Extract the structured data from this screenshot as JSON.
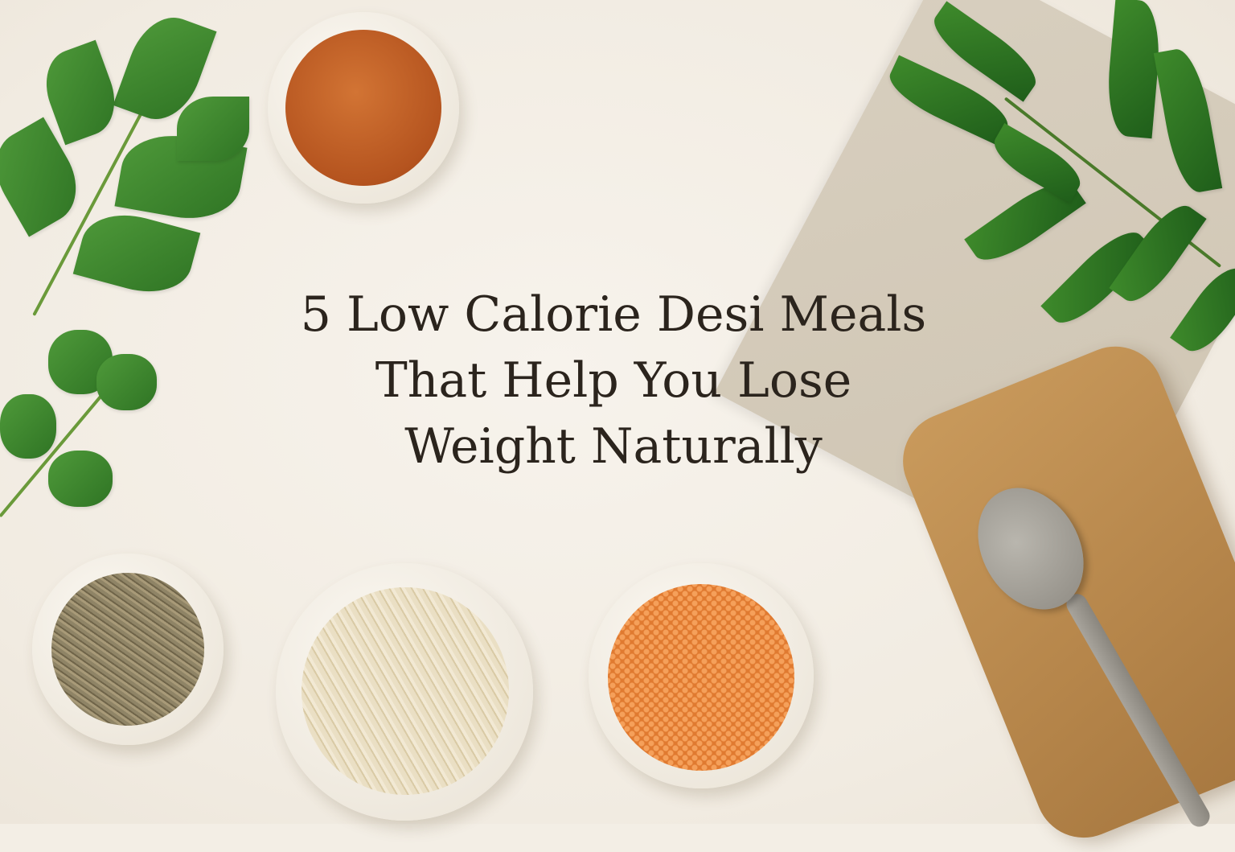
{
  "title": {
    "lines": [
      "5 Low Calorie Desi Meals",
      "That Help You Lose",
      "Weight Naturally"
    ]
  },
  "colors": {
    "background": "#f3eee5",
    "text": "#2b241d",
    "chili_powder": "#c2622a",
    "lentils": "#f08a3c",
    "rice": "#e8dcc0",
    "cumin": "#8f8466",
    "leaf_green": "#3e8a2b",
    "wood": "#c99a5c"
  },
  "items": [
    "mint-sprig",
    "cilantro-sprig",
    "chili-powder-bowl",
    "curry-leaves",
    "linen-cloth",
    "cumin-bowl",
    "rice-bowl",
    "lentil-bowl",
    "wooden-board",
    "spoon"
  ]
}
